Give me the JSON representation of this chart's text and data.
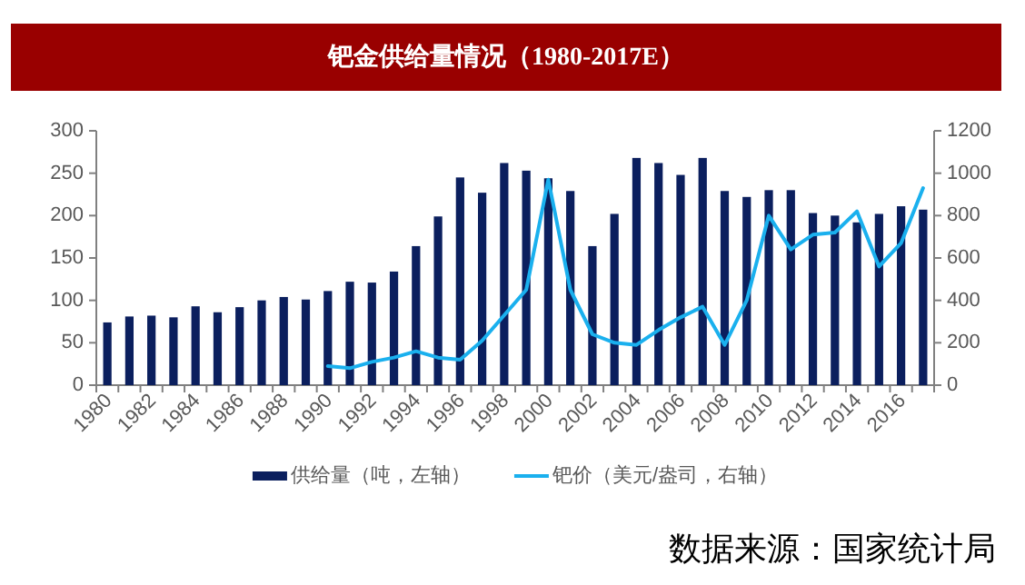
{
  "chart_data": {
    "type": "bar",
    "title": "钯金供给量情况（1980-2017E）",
    "categories": [
      "1980",
      null,
      "1982",
      null,
      "1984",
      null,
      "1986",
      null,
      "1988",
      null,
      "1990",
      null,
      "1992",
      null,
      "1994",
      null,
      "1996",
      null,
      "1998",
      null,
      "2000",
      null,
      "2002",
      null,
      "2004",
      null,
      "2006",
      null,
      "2008",
      null,
      "2010",
      null,
      "2012",
      null,
      "2014",
      null,
      "2016",
      null
    ],
    "series": [
      {
        "name": "供给量（吨，左轴）",
        "color": "#0b1f5e",
        "values": [
          74,
          81,
          82,
          80,
          93,
          86,
          92,
          100,
          104,
          101,
          111,
          122,
          121,
          134,
          164,
          199,
          245,
          227,
          262,
          253,
          244,
          229,
          164,
          202,
          268,
          262,
          248,
          268,
          229,
          222,
          230,
          230,
          203,
          200,
          192,
          202,
          211,
          207
        ]
      },
      {
        "name": "钯价（美元/盎司，右轴）",
        "type": "line",
        "axis": "y2",
        "color": "#1ab0ee",
        "values": [
          null,
          null,
          null,
          null,
          null,
          null,
          null,
          null,
          null,
          null,
          90,
          80,
          110,
          130,
          160,
          130,
          120,
          210,
          330,
          450,
          970,
          450,
          240,
          200,
          190,
          260,
          320,
          370,
          190,
          400,
          800,
          640,
          710,
          720,
          820,
          560,
          670,
          930
        ]
      }
    ],
    "ylim": [
      0,
      300
    ],
    "yticks": [
      0,
      50,
      100,
      150,
      200,
      250,
      300
    ],
    "y2lim": [
      0,
      1200
    ],
    "y2ticks": [
      0,
      200,
      400,
      600,
      800,
      1000,
      1200
    ],
    "legend": "bottom",
    "annotations": [
      "数据来源：国家统计局"
    ]
  }
}
